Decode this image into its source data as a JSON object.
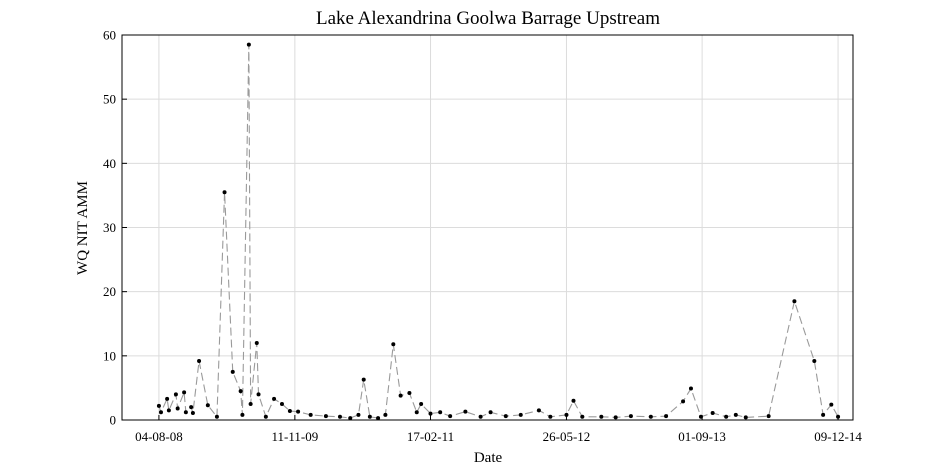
{
  "chart_data": {
    "type": "line",
    "title": "Lake Alexandrina Goolwa Barrage Upstream",
    "xlabel": "Date",
    "ylabel": "WQ NIT AMM",
    "x": [
      "04-08-08",
      "11-08-08",
      "01-09-08",
      "07-09-08",
      "01-10-08",
      "07-10-08",
      "29-10-08",
      "04-11-08",
      "22-11-08",
      "28-11-08",
      "19-12-08",
      "18-01-09",
      "18-02-09",
      "16-03-09",
      "13-04-09",
      "10-05-09",
      "16-05-09",
      "07-06-09",
      "13-06-09",
      "04-07-09",
      "10-07-09",
      "04-08-09",
      "01-09-09",
      "28-09-09",
      "25-10-09",
      "22-11-09",
      "04-01-10",
      "25-02-10",
      "14-04-10",
      "19-05-10",
      "16-06-10",
      "04-07-10",
      "25-07-10",
      "22-08-10",
      "16-09-10",
      "13-10-10",
      "07-11-10",
      "07-12-10",
      "01-01-11",
      "16-01-11",
      "17-02-11",
      "22-03-11",
      "25-04-11",
      "16-06-11",
      "07-08-11",
      "10-09-11",
      "01-11-11",
      "22-12-11",
      "22-02-12",
      "01-04-12",
      "26-05-12",
      "19-06-12",
      "19-07-12",
      "22-09-12",
      "10-11-12",
      "01-01-13",
      "10-03-13",
      "01-05-13",
      "28-06-13",
      "25-07-13",
      "28-08-13",
      "07-10-13",
      "22-11-13",
      "25-12-13",
      "28-01-14",
      "16-04-14",
      "13-07-14",
      "19-09-14",
      "19-10-14",
      "16-11-14",
      "09-12-14"
    ],
    "series": [
      {
        "name": "WQ NIT AMM",
        "color": "#000000",
        "line_color": "#9a9a9a",
        "values": [
          2.2,
          1.2,
          3.3,
          1.5,
          4.0,
          1.8,
          4.3,
          1.2,
          2.0,
          1.1,
          9.2,
          2.3,
          0.5,
          35.5,
          7.5,
          4.5,
          0.8,
          58.5,
          2.5,
          12.0,
          4.0,
          0.5,
          3.3,
          2.5,
          1.4,
          1.3,
          0.8,
          0.6,
          0.5,
          0.3,
          0.8,
          6.3,
          0.5,
          0.3,
          0.8,
          11.8,
          3.8,
          4.2,
          1.2,
          2.5,
          1.0,
          1.2,
          0.6,
          1.3,
          0.5,
          1.2,
          0.6,
          0.8,
          1.5,
          0.5,
          0.8,
          3.0,
          0.5,
          0.5,
          0.4,
          0.6,
          0.5,
          0.6,
          2.9,
          4.9,
          0.5,
          1.1,
          0.5,
          0.8,
          0.4,
          0.6,
          18.5,
          9.2,
          0.8,
          2.4,
          0.5
        ]
      }
    ],
    "xlim": [
      "31-03-08",
      "29-01-15"
    ],
    "xticks": [
      "04-08-08",
      "11-11-09",
      "17-02-11",
      "26-05-12",
      "01-09-13",
      "09-12-14"
    ],
    "ylim": [
      0,
      60
    ],
    "yticks": [
      0,
      10,
      20,
      30,
      40,
      50,
      60
    ],
    "grid": true
  }
}
